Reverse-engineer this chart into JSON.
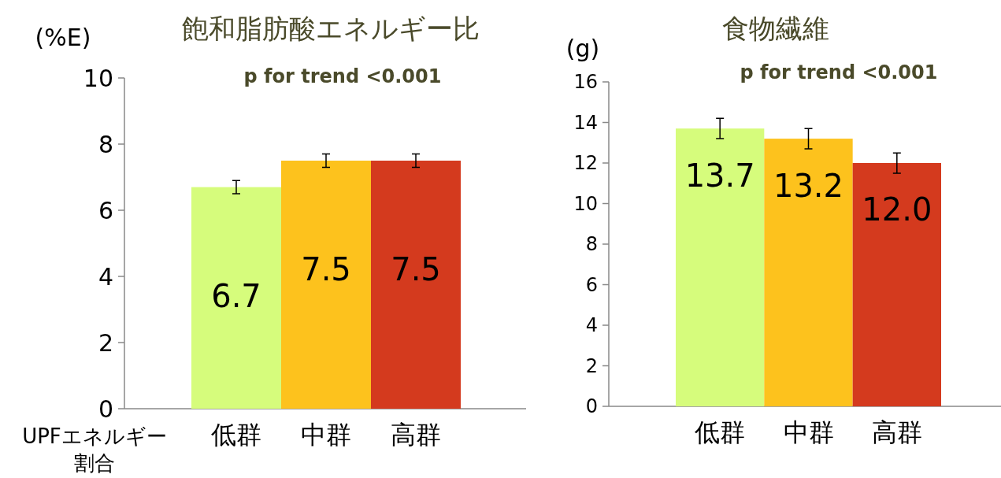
{
  "chart_data": [
    {
      "type": "bar",
      "title": "飽和脂肪酸エネルギー比",
      "ylabel": "(%E)",
      "xlabel": "UPFエネルギー割合",
      "categories": [
        "低群",
        "中群",
        "高群"
      ],
      "values": [
        6.7,
        7.5,
        7.5
      ],
      "errors": [
        0.2,
        0.2,
        0.2
      ],
      "colors": [
        "#d6fc7c",
        "#fdc21d",
        "#d43a1e"
      ],
      "ylim": [
        0,
        10
      ],
      "yticks": [
        0,
        2,
        4,
        6,
        8,
        10
      ],
      "data_labels": true,
      "annotations": [
        "p for trend <0.001"
      ]
    },
    {
      "type": "bar",
      "title": "食物繊維",
      "ylabel": "(g)",
      "categories": [
        "低群",
        "中群",
        "高群"
      ],
      "values": [
        13.7,
        13.2,
        12.0
      ],
      "errors": [
        0.5,
        0.5,
        0.5
      ],
      "colors": [
        "#d6fc7c",
        "#fdc21d",
        "#d43a1e"
      ],
      "ylim": [
        0,
        16
      ],
      "yticks": [
        0,
        2,
        4,
        6,
        8,
        10,
        12,
        14,
        16
      ],
      "value_labels": [
        "13.7",
        "13.2",
        "12.0"
      ],
      "annotations": [
        "p for trend <0.001"
      ]
    }
  ]
}
